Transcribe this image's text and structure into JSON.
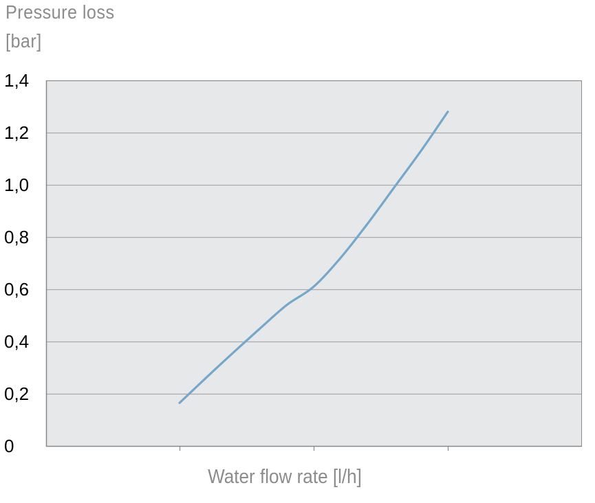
{
  "chart_data": {
    "type": "line",
    "title": "",
    "ylabel_lines": [
      "Pressure loss",
      "[bar]"
    ],
    "xlabel": "Water flow rate [l/h]",
    "ylim": [
      0,
      1.4
    ],
    "yticks": [
      {
        "value": 0,
        "label": "0"
      },
      {
        "value": 0.2,
        "label": "0,2"
      },
      {
        "value": 0.4,
        "label": "0,4"
      },
      {
        "value": 0.6,
        "label": "0,6"
      },
      {
        "value": 0.8,
        "label": "0,8"
      },
      {
        "value": 1.0,
        "label": "1,0"
      },
      {
        "value": 1.2,
        "label": "1,2"
      },
      {
        "value": 1.4,
        "label": "1,4"
      }
    ],
    "xlim": [
      0,
      4
    ],
    "xticks": [
      1,
      2,
      3
    ],
    "xtick_labels_shown": false,
    "grid": "horizontal",
    "series": [
      {
        "color": "#74a7cc",
        "points": [
          {
            "x": 1.0,
            "y": 0.165
          },
          {
            "x": 1.3,
            "y": 0.31
          },
          {
            "x": 1.6,
            "y": 0.45
          },
          {
            "x": 1.8,
            "y": 0.54
          },
          {
            "x": 2.0,
            "y": 0.61
          },
          {
            "x": 2.2,
            "y": 0.72
          },
          {
            "x": 2.4,
            "y": 0.85
          },
          {
            "x": 2.6,
            "y": 0.99
          },
          {
            "x": 2.8,
            "y": 1.13
          },
          {
            "x": 3.0,
            "y": 1.28
          }
        ]
      }
    ],
    "colors": {
      "plot_background": "#e7e8ea",
      "grid": "#aaaaaa",
      "axis": "#888888",
      "text": "#8c8c8c",
      "tick_text": "#000000"
    }
  }
}
